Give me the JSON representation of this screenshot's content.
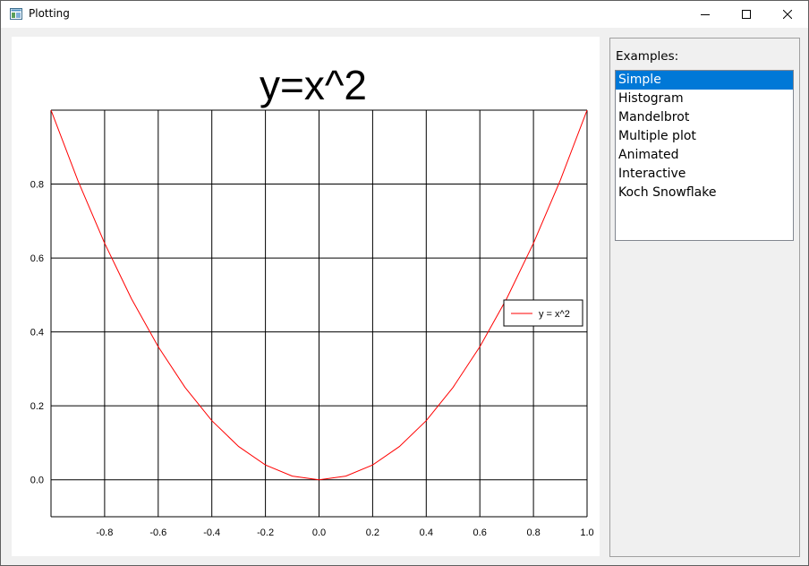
{
  "window": {
    "title": "Plotting",
    "app_icon": "app-window-icon",
    "controls": {
      "minimize_icon": "minimize-icon",
      "maximize_icon": "maximize-icon",
      "close_icon": "close-icon"
    }
  },
  "sidebar": {
    "label": "Examples:",
    "items": [
      "Simple",
      "Histogram",
      "Mandelbrot",
      "Multiple plot",
      "Animated",
      "Interactive",
      "Koch Snowflake"
    ],
    "selected_index": 0,
    "selected_color": "#0078d7"
  },
  "chart_data": {
    "type": "line",
    "title": "y=x^2",
    "xlabel": "",
    "ylabel": "",
    "xlim": [
      -1.0,
      1.0
    ],
    "ylim": [
      -0.1,
      1.0
    ],
    "xticks": [
      -0.8,
      -0.6,
      -0.4,
      -0.2,
      0.0,
      0.2,
      0.4,
      0.6,
      0.8,
      1.0
    ],
    "xtick_labels": [
      "-0.8",
      "-0.6",
      "-0.4",
      "-0.2",
      "0.0",
      "0.2",
      "0.4",
      "0.6",
      "0.8",
      "1.0"
    ],
    "yticks": [
      0.0,
      0.2,
      0.4,
      0.6,
      0.8
    ],
    "ytick_labels": [
      "0.0",
      "0.2",
      "0.4",
      "0.6",
      "0.8"
    ],
    "grid": true,
    "legend_position": "right",
    "series": [
      {
        "name": "y = x^2",
        "color": "#ff0000",
        "x": [
          -1.0,
          -0.9,
          -0.8,
          -0.7,
          -0.6,
          -0.5,
          -0.4,
          -0.3,
          -0.2,
          -0.1,
          0.0,
          0.1,
          0.2,
          0.3,
          0.4,
          0.5,
          0.6,
          0.7,
          0.8,
          0.9,
          1.0
        ],
        "y": [
          1.0,
          0.81,
          0.64,
          0.49,
          0.36,
          0.25,
          0.16,
          0.09,
          0.04,
          0.01,
          0.0,
          0.01,
          0.04,
          0.09,
          0.16,
          0.25,
          0.36,
          0.49,
          0.64,
          0.81,
          1.0
        ]
      }
    ]
  }
}
